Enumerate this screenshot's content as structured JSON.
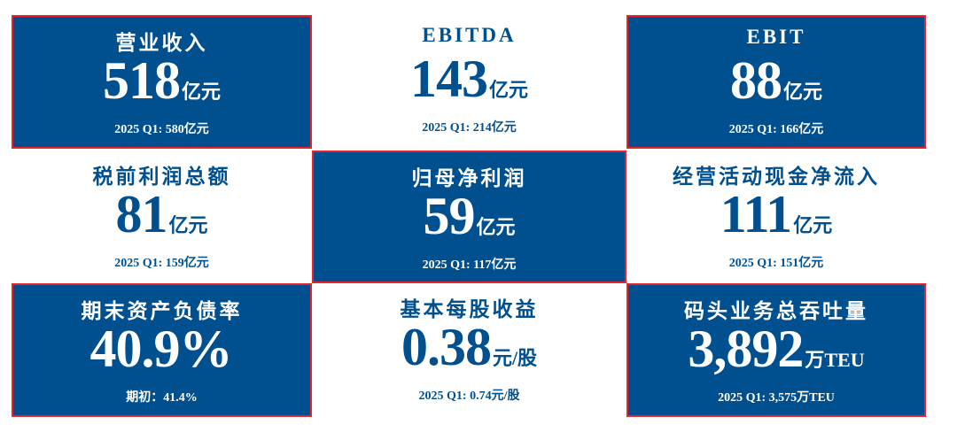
{
  "cards": [
    {
      "title": "营业收入",
      "value": "518",
      "unit": "亿元",
      "sub": "2025 Q1: 580亿元",
      "style": "blue"
    },
    {
      "title": "EBITDA",
      "value": "143",
      "unit": "亿元",
      "sub": "2025 Q1: 214亿元",
      "style": "white"
    },
    {
      "title": "EBIT",
      "value": "88",
      "unit": "亿元",
      "sub": "2025 Q1: 166亿元",
      "style": "blue"
    },
    {
      "title": "税前利润总额",
      "value": "81",
      "unit": "亿元",
      "sub": "2025 Q1:  159亿元",
      "style": "white"
    },
    {
      "title": "归母净利润",
      "value": "59",
      "unit": "亿元",
      "sub": "2025 Q1: 117亿元",
      "style": "blue"
    },
    {
      "title": "经营活动现金净流入",
      "value": "111",
      "unit": "亿元",
      "sub": "2025 Q1: 151亿元",
      "style": "white"
    },
    {
      "title": "期末资产负债率",
      "value": "40.9%",
      "unit": "",
      "sub": "期初：41.4%",
      "style": "blue"
    },
    {
      "title": "基本每股收益",
      "value": "0.38",
      "unit": "元/股",
      "sub": "2025 Q1: 0.74元/股",
      "style": "white"
    },
    {
      "title": "码头业务总吞吐量",
      "value": "3,892",
      "unit": "万TEU",
      "sub": "2025 Q1:  3,575万TEU",
      "style": "blue"
    }
  ],
  "colors": {
    "brand_blue": "#00508F",
    "border_red": "#e8232a"
  }
}
